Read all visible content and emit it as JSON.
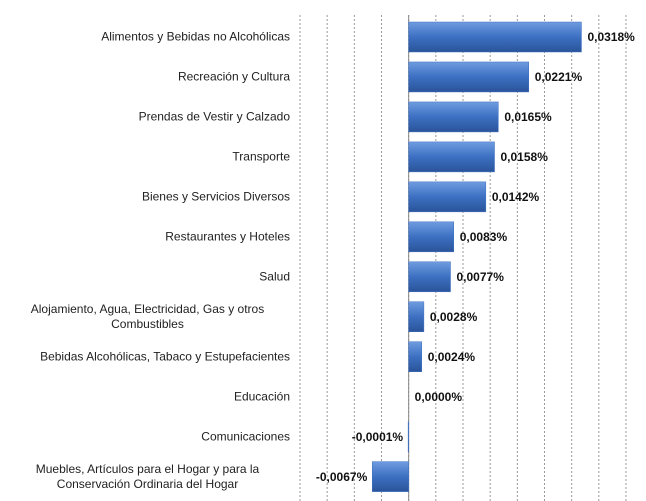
{
  "chart_data": {
    "type": "barh",
    "categories": [
      "Alimentos y Bebidas no Alcohólicas",
      "Recreación y Cultura",
      "Prendas de Vestir y Calzado",
      "Transporte",
      "Bienes y Servicios Diversos",
      "Restaurantes y Hoteles",
      "Salud",
      "Alojamiento, Agua, Electricidad, Gas y otros Combustibles",
      "Bebidas Alcohólicas, Tabaco y Estupefacientes",
      "Educación",
      "Comunicaciones",
      "Muebles, Artículos para el Hogar y para la Conservación Ordinaria del Hogar"
    ],
    "values": [
      0.0318,
      0.0221,
      0.0165,
      0.0158,
      0.0142,
      0.0083,
      0.0077,
      0.0028,
      0.0024,
      0,
      -0.0001,
      -0.0067
    ],
    "value_labels": [
      "0,0318%",
      "0,0221%",
      "0,0165%",
      "0,0158%",
      "0,0142%",
      "0,0083%",
      "0,0077%",
      "0,0028%",
      "0,0024%",
      "0,0000%",
      "-0,0001%",
      "-0,0067%"
    ],
    "color": "#3d70c2",
    "xlim": [
      -0.02,
      0.04
    ],
    "xticks": [
      -0.02,
      -0.015,
      -0.01,
      -0.005,
      0,
      0.005,
      0.01,
      0.015,
      0.02,
      0.025,
      0.03,
      0.035,
      0.04
    ],
    "grid": true
  }
}
